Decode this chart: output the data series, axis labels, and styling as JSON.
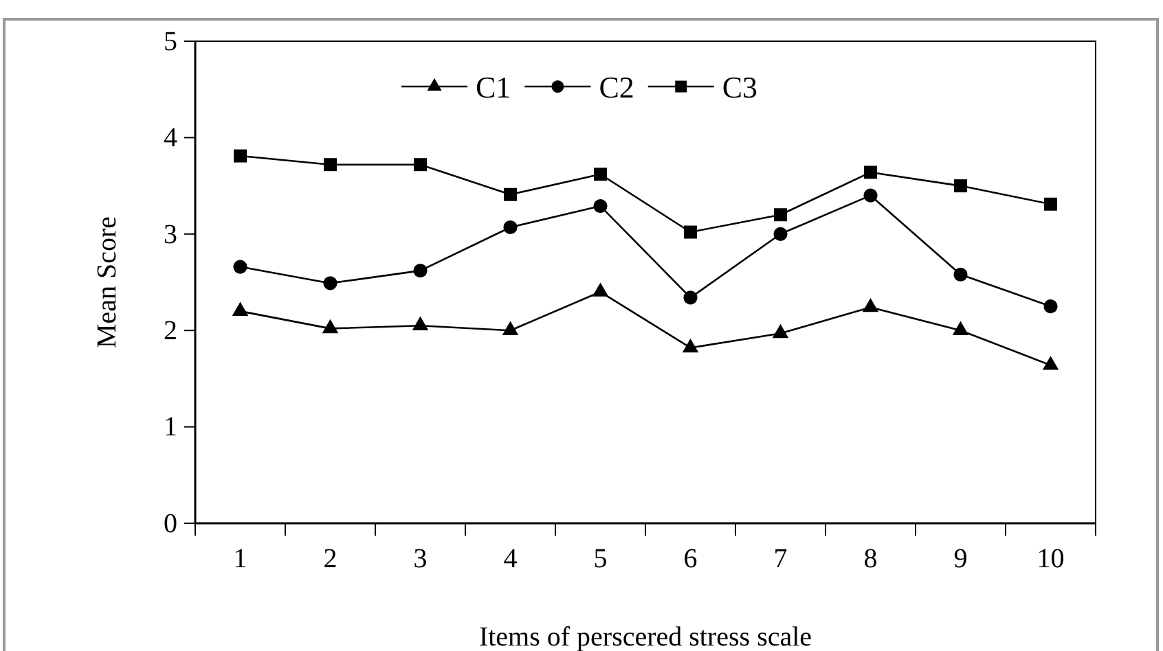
{
  "chart_data": {
    "type": "line",
    "xlabel": "Items of perscered stress scale",
    "ylabel": "Mean Score",
    "categories": [
      "1",
      "2",
      "3",
      "4",
      "5",
      "6",
      "7",
      "8",
      "9",
      "10"
    ],
    "ylim": [
      0,
      5
    ],
    "yticks": [
      0,
      1,
      2,
      3,
      4,
      5
    ],
    "legend": "top",
    "grid": false,
    "line_style": "solid",
    "series": [
      {
        "name": "C1",
        "color": "#000000",
        "marker": "triangle",
        "values": [
          2.2,
          2.02,
          2.05,
          2.0,
          2.4,
          1.82,
          1.97,
          2.24,
          2.0,
          1.64
        ]
      },
      {
        "name": "C2",
        "color": "#000000",
        "marker": "circle",
        "values": [
          2.66,
          2.49,
          2.62,
          3.07,
          3.29,
          2.34,
          3.0,
          3.4,
          2.58,
          2.25
        ]
      },
      {
        "name": "C3",
        "color": "#000000",
        "marker": "square",
        "values": [
          3.81,
          3.72,
          3.72,
          3.41,
          3.62,
          3.02,
          3.2,
          3.64,
          3.5,
          3.31
        ]
      }
    ]
  }
}
